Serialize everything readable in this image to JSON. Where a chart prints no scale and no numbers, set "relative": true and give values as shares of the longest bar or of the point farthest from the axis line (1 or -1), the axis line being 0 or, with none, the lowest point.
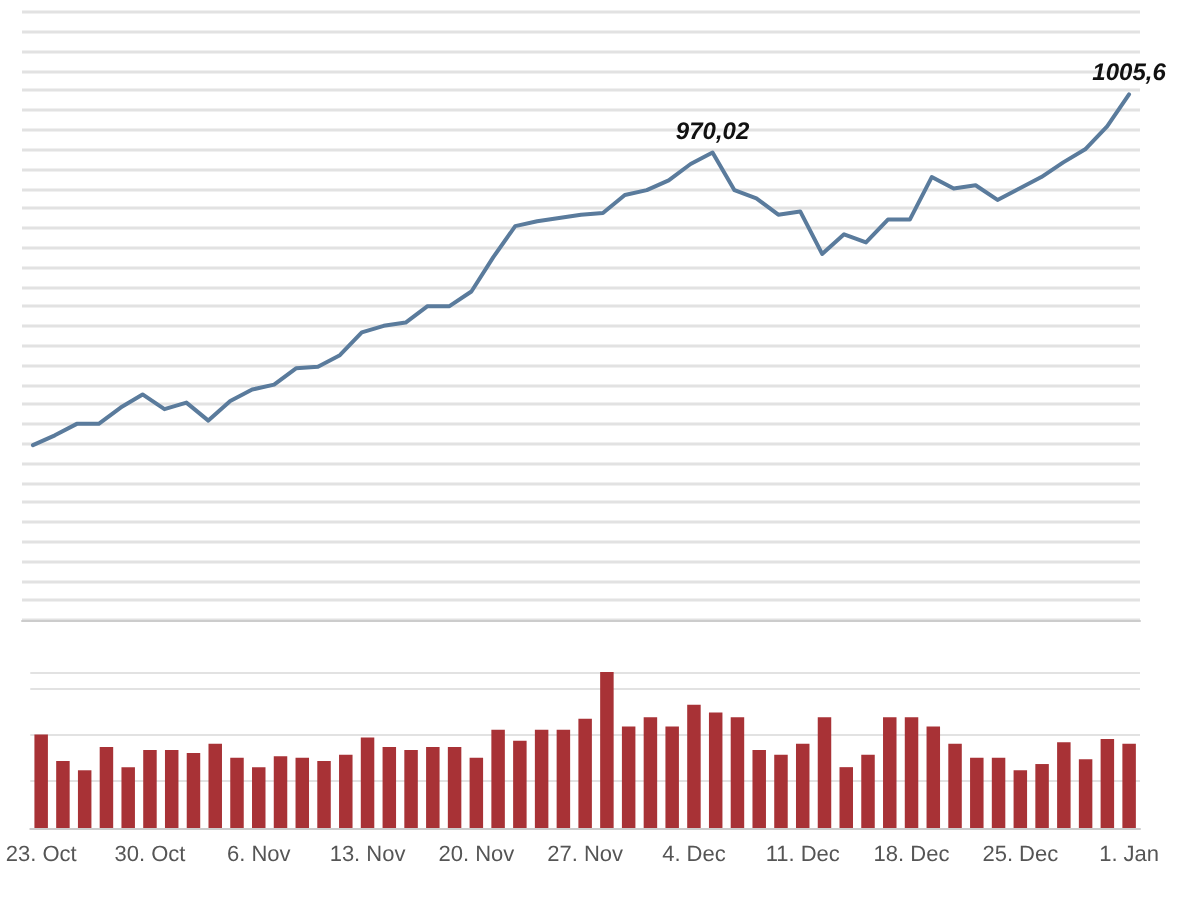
{
  "chart_data": [
    {
      "type": "line",
      "categories": [
        null,
        null,
        null,
        null,
        null,
        null,
        null,
        null,
        null,
        null,
        null,
        null,
        null,
        null,
        null,
        null,
        null,
        null,
        null,
        null,
        null,
        null,
        null,
        null,
        null,
        null,
        null,
        null,
        null,
        null,
        null,
        null,
        null,
        null,
        null,
        null,
        null,
        null,
        null,
        null,
        null,
        null,
        null,
        null,
        null,
        null,
        null,
        null,
        null,
        null,
        null
      ],
      "values": [
        791,
        797,
        804,
        804,
        814,
        822,
        813,
        817,
        806,
        818,
        825,
        828,
        838,
        839,
        846,
        860,
        864,
        866,
        876,
        876,
        885,
        906,
        925,
        928,
        930,
        932,
        933,
        944,
        947,
        953,
        963,
        970.02,
        947,
        942,
        932,
        934,
        908,
        920,
        915,
        929,
        929,
        955,
        948,
        950,
        941,
        948,
        955,
        964,
        972,
        986,
        1005.6
      ],
      "value_labels": [
        null,
        null,
        null,
        null,
        null,
        null,
        null,
        null,
        null,
        null,
        null,
        null,
        null,
        null,
        null,
        null,
        null,
        null,
        null,
        null,
        null,
        null,
        null,
        null,
        null,
        null,
        null,
        null,
        null,
        null,
        null,
        "970,02",
        null,
        null,
        null,
        null,
        null,
        null,
        null,
        null,
        null,
        null,
        null,
        null,
        null,
        null,
        null,
        null,
        null,
        null,
        "1005,6"
      ],
      "color": "#5a7b9c",
      "marker": "none",
      "grid": "y",
      "ylim": [
        684,
        1056
      ],
      "yticks": [
        {
          "value": 684,
          "label": null
        },
        {
          "value": 696,
          "label": null
        },
        {
          "value": 708,
          "label": null
        },
        {
          "value": 720,
          "label": null
        },
        {
          "value": 732,
          "label": null
        },
        {
          "value": 744,
          "label": null
        },
        {
          "value": 756,
          "label": null
        },
        {
          "value": 768,
          "label": null
        },
        {
          "value": 780,
          "label": null
        },
        {
          "value": 792,
          "label": null
        },
        {
          "value": 804,
          "label": null
        },
        {
          "value": 816,
          "label": null
        },
        {
          "value": 828,
          "label": null
        },
        {
          "value": 840,
          "label": null
        },
        {
          "value": 852,
          "label": null
        },
        {
          "value": 864,
          "label": null
        },
        {
          "value": 876,
          "label": null
        },
        {
          "value": 888,
          "label": null
        },
        {
          "value": 900,
          "label": null
        },
        {
          "value": 912,
          "label": null
        },
        {
          "value": 924,
          "label": null
        },
        {
          "value": 936,
          "label": null
        },
        {
          "value": 948,
          "label": null
        },
        {
          "value": 960,
          "label": null
        },
        {
          "value": 972,
          "label": null
        },
        {
          "value": 984,
          "label": null
        },
        {
          "value": 996,
          "label": null
        },
        {
          "value": 1008,
          "label": null
        },
        {
          "value": 1020,
          "label": null
        },
        {
          "value": 1032,
          "label": null
        },
        {
          "value": 1044,
          "label": null
        },
        {
          "value": 1056,
          "label": null
        }
      ]
    },
    {
      "type": "bar",
      "relative": true,
      "grid": "y",
      "color": "#a83236",
      "categories": [
        "23. Oct",
        null,
        null,
        null,
        null,
        "30. Oct",
        null,
        null,
        null,
        null,
        "6. Nov",
        null,
        null,
        null,
        null,
        "13. Nov",
        null,
        null,
        null,
        null,
        "20. Nov",
        null,
        null,
        null,
        null,
        "27. Nov",
        null,
        null,
        null,
        null,
        "4. Dec",
        null,
        null,
        null,
        null,
        "11. Dec",
        null,
        null,
        null,
        null,
        "18. Dec",
        null,
        null,
        null,
        null,
        "25. Dec",
        null,
        null,
        null,
        null,
        "1. Jan"
      ],
      "values": [
        0.6,
        0.43,
        0.37,
        0.52,
        0.39,
        0.5,
        0.5,
        0.48,
        0.54,
        0.45,
        0.39,
        0.46,
        0.45,
        0.43,
        0.47,
        0.58,
        0.52,
        0.5,
        0.52,
        0.52,
        0.45,
        0.63,
        0.56,
        0.63,
        0.63,
        0.7,
        1,
        0.65,
        0.71,
        0.65,
        0.79,
        0.74,
        0.71,
        0.5,
        0.47,
        0.54,
        0.71,
        0.39,
        0.47,
        0.71,
        0.71,
        0.65,
        0.54,
        0.45,
        0.45,
        0.37,
        0.41,
        0.55,
        0.44,
        0.57,
        0.54
      ]
    }
  ]
}
